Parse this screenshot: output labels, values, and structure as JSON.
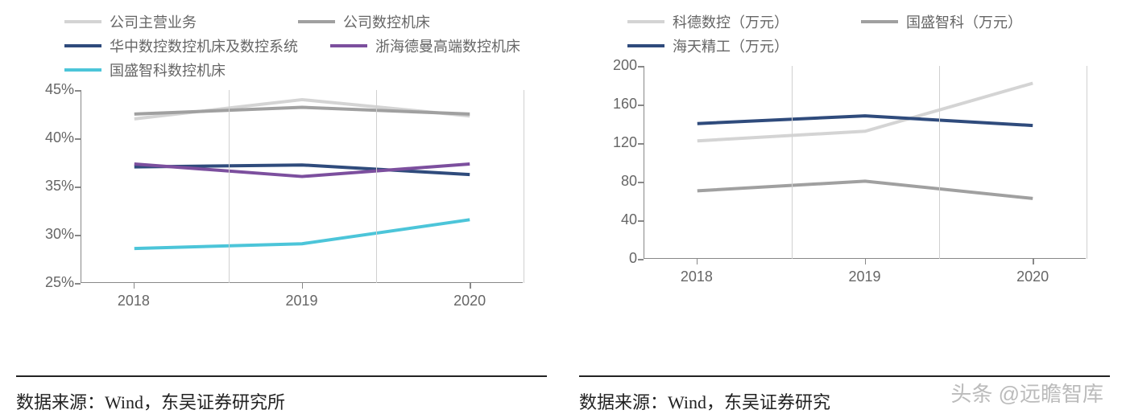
{
  "left_chart": {
    "type": "line",
    "categories": [
      "2018",
      "2019",
      "2020"
    ],
    "ylim": [
      25,
      45
    ],
    "ytick_step": 5,
    "y_suffix": "%",
    "label_fontsize": 18,
    "axis_color": "#888888",
    "grid_x": true,
    "background_color": "#ffffff",
    "line_width": 4,
    "series": [
      {
        "name": "公司主营业务",
        "color": "#d4d4d4",
        "values": [
          42.0,
          44.0,
          42.3
        ]
      },
      {
        "name": "公司数控机床",
        "color": "#a0a0a0",
        "values": [
          42.5,
          43.2,
          42.5
        ]
      },
      {
        "name": "华中数控数控机床及数控系统",
        "color": "#2f4b7c",
        "values": [
          37.0,
          37.2,
          36.2
        ]
      },
      {
        "name": "浙海德曼高端数控机床",
        "color": "#7c4f9e",
        "values": [
          37.3,
          36.0,
          37.3
        ]
      },
      {
        "name": "国盛智科数控机床",
        "color": "#4cc5d9",
        "values": [
          28.5,
          29.0,
          31.5
        ]
      }
    ]
  },
  "right_chart": {
    "type": "line",
    "categories": [
      "2018",
      "2019",
      "2020"
    ],
    "ylim": [
      0,
      200
    ],
    "ytick_step": 40,
    "y_suffix": "",
    "label_fontsize": 18,
    "axis_color": "#888888",
    "grid_x": true,
    "background_color": "#ffffff",
    "line_width": 4,
    "series": [
      {
        "name": "科德数控（万元）",
        "color": "#d4d4d4",
        "values": [
          122,
          132,
          182
        ]
      },
      {
        "name": "国盛智科（万元）",
        "color": "#a0a0a0",
        "values": [
          70,
          80,
          62
        ]
      },
      {
        "name": "海天精工（万元）",
        "color": "#2f4b7c",
        "values": [
          140,
          148,
          138
        ]
      }
    ]
  },
  "source_left": "数据来源：Wind，东吴证券研究所",
  "source_right": "数据来源：Wind，东吴证券研究",
  "watermark_text": "头条 @远瞻智库"
}
